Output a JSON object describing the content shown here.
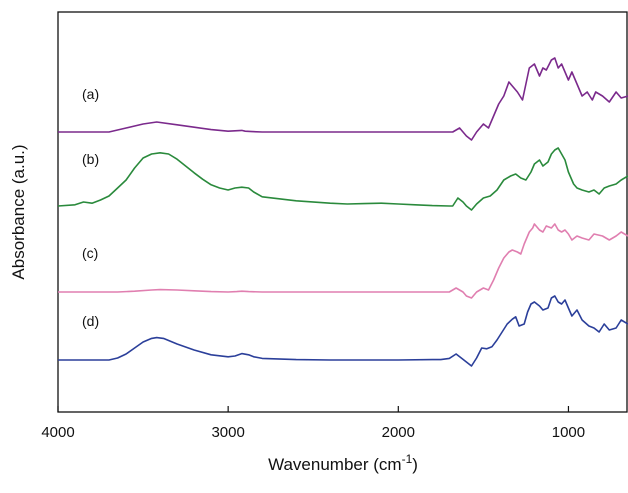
{
  "chart_data": {
    "type": "line",
    "title": "",
    "xlabel": "Wavenumber (cm",
    "xlabel_sup": "-1",
    "xlabel_tail": ")",
    "ylabel": "Absorbance (a.u.)",
    "xlim": [
      4000,
      650
    ],
    "x_reversed": true,
    "ylim": [
      0,
      1
    ],
    "y_ticks_labeled": false,
    "x_ticks": [
      4000,
      3000,
      2000,
      1000
    ],
    "x_tick_labels": [
      "4000",
      "3000",
      "2000",
      "1000"
    ],
    "grid": false,
    "legend": "none",
    "series": [
      {
        "name": "(a)",
        "color": "#7b2a8c",
        "x": [
          4000,
          3800,
          3700,
          3600,
          3500,
          3420,
          3300,
          3200,
          3100,
          3000,
          2960,
          2920,
          2900,
          2860,
          2800,
          2600,
          2400,
          2200,
          2000,
          1800,
          1750,
          1680,
          1640,
          1600,
          1570,
          1540,
          1500,
          1470,
          1440,
          1410,
          1380,
          1350,
          1320,
          1300,
          1270,
          1250,
          1230,
          1200,
          1170,
          1150,
          1130,
          1100,
          1080,
          1060,
          1040,
          1020,
          1000,
          980,
          950,
          920,
          890,
          860,
          840,
          800,
          760,
          720,
          690,
          650
        ],
        "y": [
          0.7,
          0.7,
          0.7,
          0.71,
          0.72,
          0.725,
          0.718,
          0.712,
          0.706,
          0.702,
          0.703,
          0.704,
          0.702,
          0.701,
          0.7,
          0.7,
          0.7,
          0.7,
          0.7,
          0.7,
          0.7,
          0.7,
          0.71,
          0.69,
          0.68,
          0.7,
          0.72,
          0.71,
          0.74,
          0.77,
          0.79,
          0.825,
          0.81,
          0.8,
          0.78,
          0.82,
          0.86,
          0.87,
          0.84,
          0.86,
          0.855,
          0.88,
          0.885,
          0.86,
          0.87,
          0.85,
          0.83,
          0.85,
          0.82,
          0.79,
          0.8,
          0.78,
          0.8,
          0.79,
          0.775,
          0.8,
          0.785,
          0.79
        ]
      },
      {
        "name": "(b)",
        "color": "#2a8a3c",
        "x": [
          4000,
          3900,
          3850,
          3800,
          3750,
          3700,
          3650,
          3600,
          3550,
          3500,
          3450,
          3400,
          3350,
          3300,
          3250,
          3200,
          3150,
          3100,
          3050,
          3000,
          2960,
          2920,
          2880,
          2850,
          2800,
          2600,
          2400,
          2300,
          2200,
          2100,
          2000,
          1900,
          1800,
          1700,
          1680,
          1650,
          1620,
          1600,
          1570,
          1540,
          1500,
          1460,
          1420,
          1380,
          1340,
          1310,
          1280,
          1250,
          1220,
          1200,
          1170,
          1150,
          1120,
          1100,
          1080,
          1060,
          1040,
          1020,
          1000,
          970,
          950,
          920,
          880,
          850,
          820,
          790,
          760,
          720,
          690,
          650
        ],
        "y": [
          0.515,
          0.518,
          0.525,
          0.522,
          0.53,
          0.54,
          0.56,
          0.58,
          0.61,
          0.635,
          0.645,
          0.648,
          0.645,
          0.632,
          0.615,
          0.598,
          0.582,
          0.568,
          0.56,
          0.555,
          0.56,
          0.562,
          0.56,
          0.55,
          0.538,
          0.528,
          0.522,
          0.52,
          0.521,
          0.522,
          0.52,
          0.518,
          0.516,
          0.515,
          0.515,
          0.535,
          0.525,
          0.515,
          0.505,
          0.52,
          0.535,
          0.54,
          0.555,
          0.58,
          0.59,
          0.595,
          0.585,
          0.58,
          0.6,
          0.62,
          0.63,
          0.615,
          0.625,
          0.645,
          0.655,
          0.66,
          0.645,
          0.63,
          0.6,
          0.57,
          0.56,
          0.555,
          0.55,
          0.555,
          0.545,
          0.56,
          0.565,
          0.57,
          0.58,
          0.59
        ]
      },
      {
        "name": "(c)",
        "color": "#e07fb0",
        "x": [
          4000,
          3800,
          3650,
          3550,
          3450,
          3400,
          3300,
          3200,
          3100,
          3000,
          2950,
          2920,
          2880,
          2800,
          2600,
          2400,
          2200,
          2000,
          1800,
          1750,
          1700,
          1660,
          1620,
          1600,
          1570,
          1540,
          1500,
          1470,
          1440,
          1410,
          1380,
          1350,
          1330,
          1300,
          1280,
          1260,
          1230,
          1210,
          1200,
          1170,
          1150,
          1130,
          1100,
          1080,
          1060,
          1040,
          1020,
          1000,
          980,
          950,
          920,
          880,
          850,
          800,
          760,
          720,
          690,
          650
        ],
        "y": [
          0.3,
          0.3,
          0.3,
          0.302,
          0.305,
          0.306,
          0.305,
          0.303,
          0.301,
          0.3,
          0.301,
          0.302,
          0.301,
          0.3,
          0.3,
          0.3,
          0.3,
          0.3,
          0.3,
          0.3,
          0.3,
          0.31,
          0.3,
          0.29,
          0.285,
          0.3,
          0.31,
          0.305,
          0.33,
          0.36,
          0.385,
          0.4,
          0.405,
          0.4,
          0.395,
          0.42,
          0.45,
          0.46,
          0.47,
          0.455,
          0.45,
          0.465,
          0.46,
          0.47,
          0.455,
          0.45,
          0.455,
          0.445,
          0.43,
          0.44,
          0.435,
          0.43,
          0.445,
          0.44,
          0.43,
          0.44,
          0.45,
          0.44
        ]
      },
      {
        "name": "(d)",
        "color": "#2b3f9a",
        "x": [
          4000,
          3800,
          3700,
          3650,
          3600,
          3550,
          3500,
          3450,
          3420,
          3380,
          3300,
          3200,
          3100,
          3000,
          2960,
          2920,
          2880,
          2850,
          2800,
          2600,
          2400,
          2200,
          2000,
          1800,
          1750,
          1700,
          1660,
          1630,
          1600,
          1570,
          1540,
          1510,
          1480,
          1450,
          1420,
          1390,
          1360,
          1330,
          1310,
          1290,
          1260,
          1240,
          1220,
          1200,
          1170,
          1150,
          1120,
          1100,
          1080,
          1060,
          1040,
          1020,
          1000,
          980,
          950,
          920,
          880,
          850,
          820,
          790,
          760,
          720,
          690,
          650
        ],
        "y": [
          0.13,
          0.13,
          0.13,
          0.135,
          0.145,
          0.16,
          0.175,
          0.184,
          0.186,
          0.184,
          0.17,
          0.155,
          0.143,
          0.138,
          0.14,
          0.146,
          0.143,
          0.138,
          0.134,
          0.131,
          0.13,
          0.13,
          0.13,
          0.131,
          0.131,
          0.134,
          0.145,
          0.135,
          0.125,
          0.115,
          0.135,
          0.16,
          0.158,
          0.163,
          0.18,
          0.2,
          0.22,
          0.232,
          0.238,
          0.215,
          0.22,
          0.25,
          0.27,
          0.275,
          0.265,
          0.255,
          0.26,
          0.285,
          0.29,
          0.275,
          0.27,
          0.28,
          0.26,
          0.24,
          0.255,
          0.23,
          0.215,
          0.21,
          0.2,
          0.22,
          0.205,
          0.21,
          0.23,
          0.22
        ]
      }
    ]
  }
}
